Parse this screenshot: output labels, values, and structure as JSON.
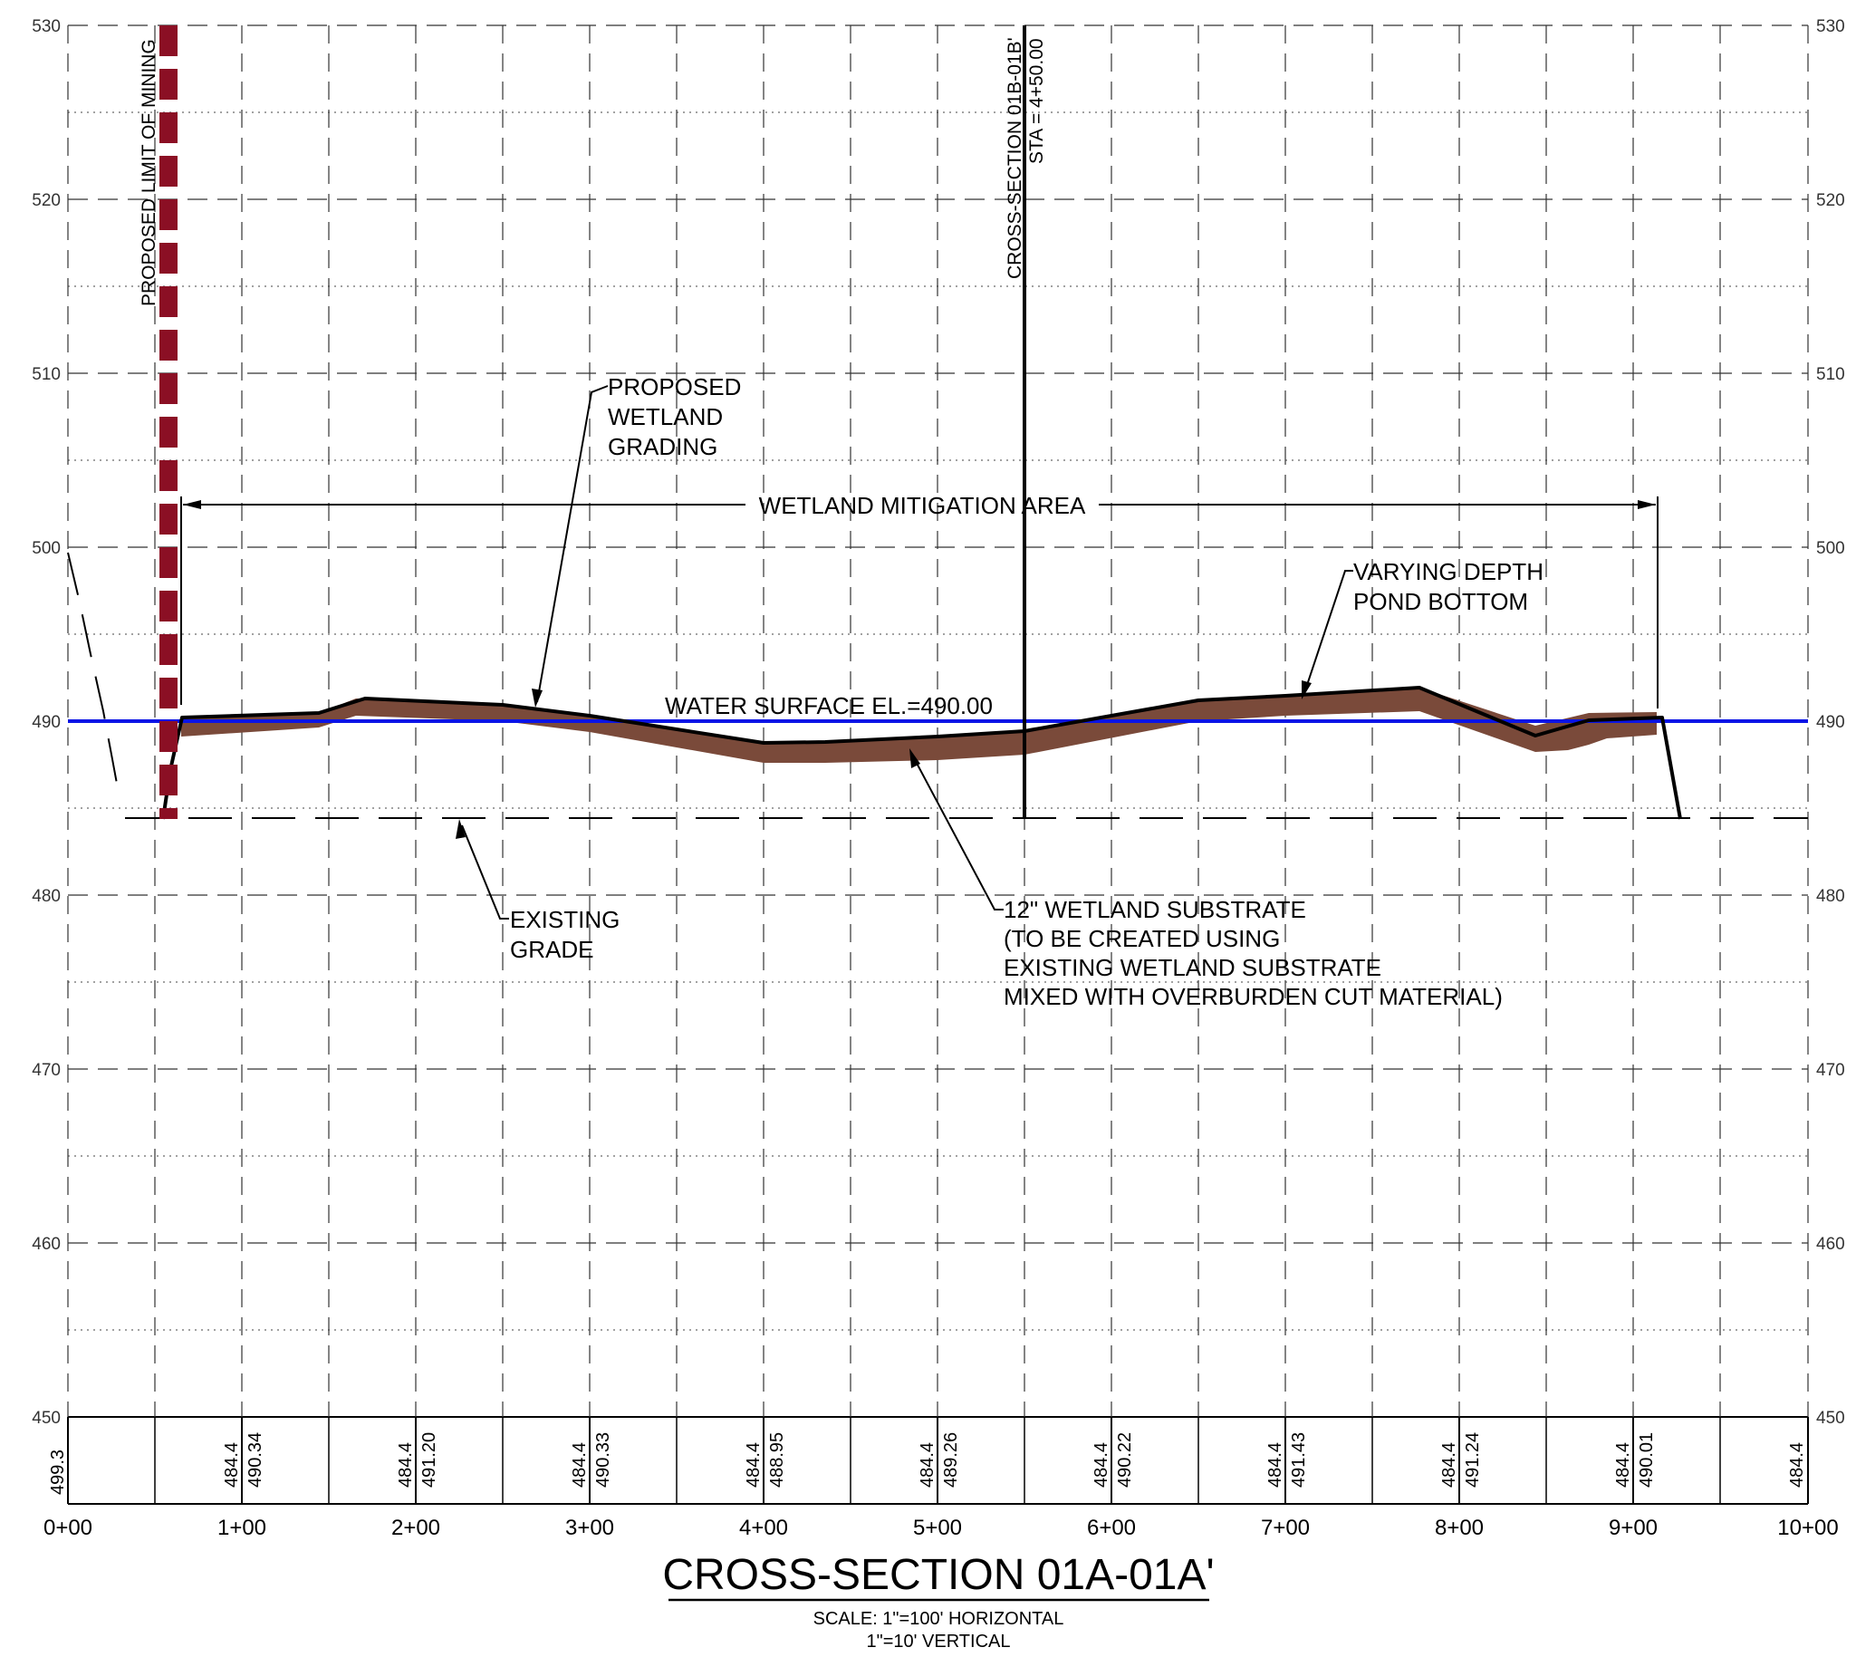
{
  "title": "CROSS-SECTION 01A-01A'",
  "scale": {
    "line1": "SCALE: 1\"=100' HORIZONTAL",
    "line2": "1\"=10' VERTICAL"
  },
  "axes": {
    "y_ticks": [
      "450",
      "460",
      "470",
      "480",
      "490",
      "500",
      "510",
      "520",
      "530"
    ],
    "x_ticks": [
      "0+00",
      "1+00",
      "2+00",
      "3+00",
      "4+00",
      "5+00",
      "6+00",
      "7+00",
      "8+00",
      "9+00",
      "10+00"
    ]
  },
  "elevation_table": {
    "existing": [
      "499.3",
      "484.4",
      "484.4",
      "484.4",
      "484.4",
      "484.4",
      "484.4",
      "484.4",
      "484.4",
      "484.4",
      "484.4"
    ],
    "proposed": [
      "490.34",
      "491.20",
      "490.33",
      "488.95",
      "489.26",
      "490.22",
      "491.43",
      "491.24",
      "490.01"
    ]
  },
  "labels": {
    "limit_of_mining": "PROPOSED LIMIT OF MINING",
    "cross_section_ref_1": "CROSS-SECTION 01B-01B'",
    "cross_section_ref_2": "STA = 4+50.00",
    "proposed_grading": [
      "PROPOSED",
      "WETLAND",
      "GRADING"
    ],
    "mitigation_area": "WETLAND MITIGATION AREA",
    "varying_depth": [
      "VARYING DEPTH",
      "POND BOTTOM"
    ],
    "water_surface": "WATER SURFACE EL.=490.00",
    "existing_grade": [
      "EXISTING",
      "GRADE"
    ],
    "substrate": [
      "12\" WETLAND SUBSTRATE",
      "(TO BE CREATED USING",
      "EXISTING WETLAND SUBSTRATE",
      "MIXED WITH OVERBURDEN CUT MATERIAL)"
    ]
  },
  "colors": {
    "water_line": "#0a14e6",
    "substrate": "#7a4a3a",
    "limit_of_mining": "#8b0f24"
  }
}
